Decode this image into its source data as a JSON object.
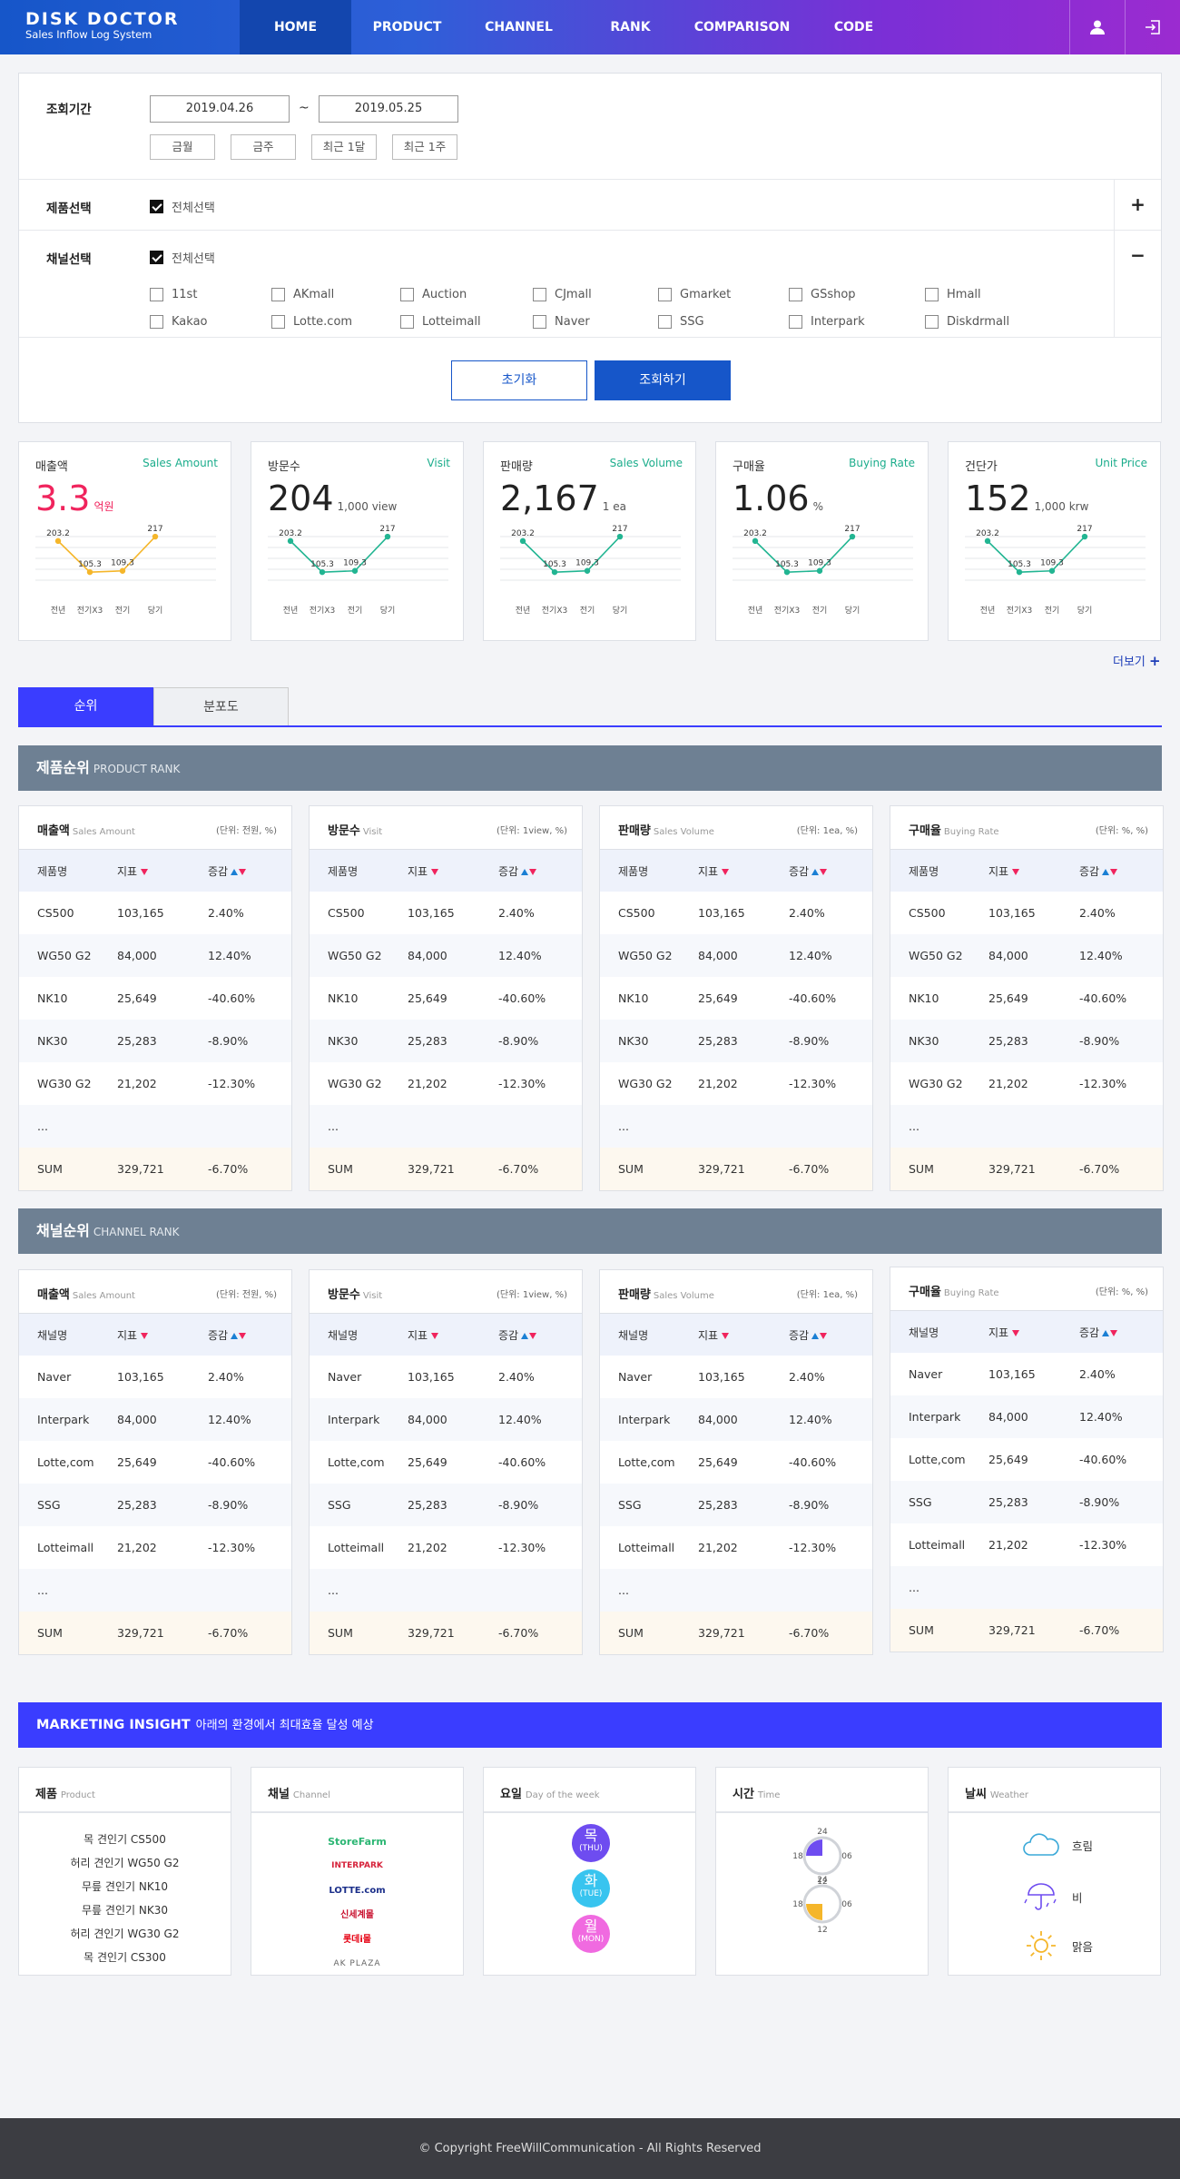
{
  "header": {
    "logo_title": "DISK DOCTOR",
    "logo_sub": "Sales Inflow Log System",
    "nav": [
      "HOME",
      "PRODUCT",
      "CHANNEL",
      "RANK",
      "COMPARISON",
      "CODE"
    ],
    "active_nav": "HOME",
    "icons": [
      "user-icon",
      "logout-icon"
    ]
  },
  "filter": {
    "period_label": "조회기간",
    "date_from": "2019.04.26",
    "date_to": "2019.05.25",
    "tilde": "~",
    "quick": [
      "금월",
      "금주",
      "최근 1달",
      "최근 1주"
    ],
    "product_label": "제품선택",
    "select_all": "전체선택",
    "channel_label": "채널선택",
    "channels_row1": [
      "11st",
      "AKmall",
      "Auction",
      "CJmall",
      "Gmarket",
      "GSshop",
      "Hmall"
    ],
    "channels_row2": [
      "Kakao",
      "Lotte.com",
      "Lotteimall",
      "Naver",
      "SSG",
      "Interpark",
      "Diskdrmall"
    ],
    "plus": "+",
    "minus": "−",
    "reset": "초기화",
    "search": "조회하기"
  },
  "kpis": [
    {
      "title": "매출액",
      "en": "Sales Amount",
      "value": "3.3",
      "unit": "억원",
      "accent": "#f0245d",
      "line_color": "#f5b62a"
    },
    {
      "title": "방문수",
      "en": "Visit",
      "value": "204",
      "unit": "1,000 view",
      "accent": "#222222",
      "line_color": "#22b592"
    },
    {
      "title": "판매량",
      "en": "Sales Volume",
      "value": "2,167",
      "unit": "1 ea",
      "accent": "#222222",
      "line_color": "#22b592"
    },
    {
      "title": "구매율",
      "en": "Buying Rate",
      "value": "1.06",
      "unit": "%",
      "accent": "#222222",
      "line_color": "#22b592"
    },
    {
      "title": "건단가",
      "en": "Unit Price",
      "value": "152",
      "unit": "1,000 krw",
      "accent": "#222222",
      "line_color": "#22b592"
    }
  ],
  "chart_data": {
    "type": "line",
    "categories": [
      "전년",
      "전기X3",
      "전기",
      "당기"
    ],
    "values": [
      203.2,
      105.3,
      109.3,
      217
    ],
    "labels": [
      "203.2",
      "105.3",
      "109.3",
      "217"
    ]
  },
  "more": "더보기",
  "more_plus": "+",
  "tabs": [
    "순위",
    "분포도"
  ],
  "product_rank": {
    "title": "제품순위",
    "en": "PRODUCT RANK",
    "cards": [
      {
        "title": "매출액",
        "en": "Sales Amount",
        "unit": "(단위: 전원, %)"
      },
      {
        "title": "방문수",
        "en": "Visit",
        "unit": "(단위: 1view, %)"
      },
      {
        "title": "판매량",
        "en": "Sales Volume",
        "unit": "(단위: 1ea, %)"
      },
      {
        "title": "구매율",
        "en": "Buying Rate",
        "unit": "(단위: %, %)"
      }
    ],
    "cols": [
      "제품명",
      "지표",
      "증감"
    ],
    "rows": [
      [
        "CS500",
        "103,165",
        "2.40%"
      ],
      [
        "WG50 G2",
        "84,000",
        "12.40%"
      ],
      [
        "NK10",
        "25,649",
        "-40.60%"
      ],
      [
        "NK30",
        "25,283",
        "-8.90%"
      ],
      [
        "WG30 G2",
        "21,202",
        "-12.30%"
      ],
      [
        "...",
        "",
        ""
      ],
      [
        "SUM",
        "329,721",
        "-6.70%"
      ]
    ]
  },
  "channel_rank": {
    "title": "채널순위",
    "en": "CHANNEL RANK",
    "cards": [
      {
        "title": "매출액",
        "en": "Sales Amount",
        "unit": "(단위: 전원, %)"
      },
      {
        "title": "방문수",
        "en": "Visit",
        "unit": "(단위: 1view, %)"
      },
      {
        "title": "판매량",
        "en": "Sales Volume",
        "unit": "(단위: 1ea, %)"
      },
      {
        "title": "구매율",
        "en": "Buying Rate",
        "unit": "(단위: %, %)"
      }
    ],
    "cols": [
      "채널명",
      "지표",
      "증감"
    ],
    "rows": [
      [
        "Naver",
        "103,165",
        "2.40%"
      ],
      [
        "Interpark",
        "84,000",
        "12.40%"
      ],
      [
        "Lotte,com",
        "25,649",
        "-40.60%"
      ],
      [
        "SSG",
        "25,283",
        "-8.90%"
      ],
      [
        "Lotteimall",
        "21,202",
        "-12.30%"
      ],
      [
        "...",
        "",
        ""
      ],
      [
        "SUM",
        "329,721",
        "-6.70%"
      ]
    ]
  },
  "marketing": {
    "title": "MARKETING INSIGHT",
    "sub": "아래의 환경에서 최대효율 달성 예상",
    "product": {
      "title": "제품",
      "en": "Product",
      "items": [
        "목 견인기 CS500",
        "허리 견인기 WG50 G2",
        "무릎 견인기 NK10",
        "무릎 견인기 NK30",
        "허리 견인기 WG30 G2",
        "목 견인기 CS300"
      ]
    },
    "channel": {
      "title": "채널",
      "en": "Channel",
      "logos": [
        "StoreFarm",
        "INTERPARK",
        "LOTTE.com",
        "신세계몰",
        "롯데i몰",
        "AK PLAZA"
      ]
    },
    "day": {
      "title": "요일",
      "en": "Day of the week",
      "days": [
        {
          "k": "목",
          "e": "(THU)",
          "c": "#6e4cf0"
        },
        {
          "k": "화",
          "e": "(TUE)",
          "c": "#38c4ef"
        },
        {
          "k": "월",
          "e": "(MON)",
          "c": "#f06ae0"
        }
      ]
    },
    "time": {
      "title": "시간",
      "en": "Time",
      "ticks": [
        "24",
        "06",
        "12",
        "18"
      ],
      "fills": [
        0.25,
        0.25
      ],
      "colors": [
        "#6e4cf0",
        "#f5b62a"
      ]
    },
    "weather": {
      "title": "날씨",
      "en": "Weather",
      "items": [
        "흐림",
        "비",
        "맑음"
      ]
    }
  },
  "footer": "© Copyright FreeWillCommunication - All Rights Reserved"
}
